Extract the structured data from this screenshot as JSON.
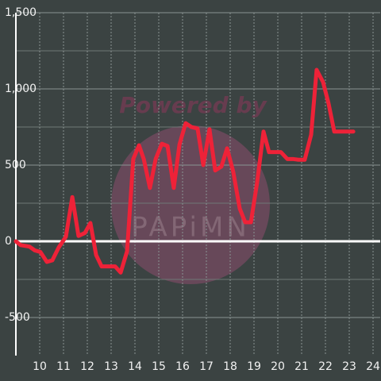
{
  "chart_data": {
    "type": "line",
    "watermark": [
      "Powered by",
      "PAPiMN"
    ],
    "x": [
      9.0,
      9.2,
      9.57,
      9.8,
      10.03,
      10.3,
      10.53,
      10.8,
      11.1,
      11.37,
      11.63,
      11.9,
      12.13,
      12.37,
      12.6,
      12.9,
      13.17,
      13.4,
      13.67,
      13.93,
      14.17,
      14.37,
      14.63,
      14.87,
      15.13,
      15.37,
      15.63,
      15.87,
      16.13,
      16.37,
      16.63,
      16.87,
      17.13,
      17.37,
      17.63,
      17.87,
      18.13,
      18.4,
      18.63,
      18.87,
      19.13,
      19.4,
      19.63,
      19.9,
      20.13,
      20.4,
      20.63,
      20.87,
      21.13,
      21.4,
      21.63,
      21.9,
      22.13,
      22.37,
      22.63,
      22.87,
      23.17
    ],
    "series": [
      {
        "color": "#ee2238",
        "values": [
          0,
          -25,
          -35,
          -60,
          -70,
          -135,
          -125,
          -40,
          30,
          290,
          35,
          55,
          120,
          -90,
          -165,
          -165,
          -165,
          -205,
          -65,
          540,
          630,
          540,
          350,
          540,
          640,
          625,
          350,
          635,
          775,
          750,
          740,
          500,
          735,
          465,
          490,
          610,
          455,
          215,
          125,
          125,
          385,
          720,
          585,
          585,
          585,
          540,
          540,
          535,
          535,
          700,
          1125,
          1045,
          905,
          720,
          720,
          720,
          720
        ]
      }
    ],
    "xlim": [
      9,
      24.3
    ],
    "xticks": [
      10,
      11,
      12,
      13,
      14,
      15,
      16,
      17,
      18,
      19,
      20,
      21,
      22,
      23,
      24
    ],
    "ylim": [
      -750,
      1500
    ],
    "yticks": [
      {
        "value": 1500,
        "label": "1,500"
      },
      {
        "value": 1000,
        "label": "1,000"
      },
      500,
      0,
      -500
    ],
    "y_minor_ticks": [
      1250,
      750,
      250,
      -250
    ],
    "grid": true
  }
}
